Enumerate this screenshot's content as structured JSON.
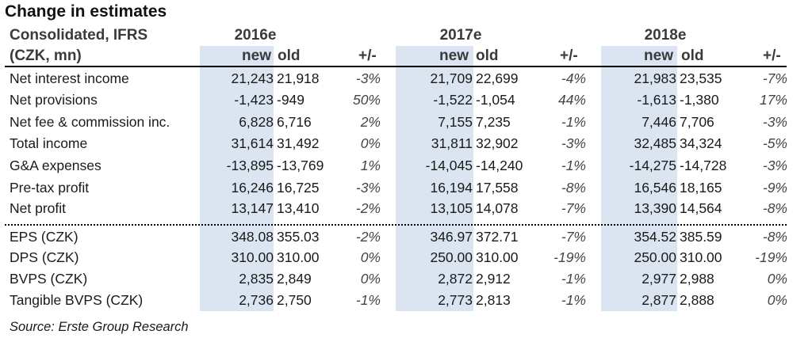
{
  "title": "Change in estimates",
  "header": {
    "line1": "Consolidated, IFRS",
    "line2": "(CZK, mn)",
    "years": [
      "2016e",
      "2017e",
      "2018e"
    ],
    "new_label": "new",
    "old_label": "old",
    "chg_label": "+/-"
  },
  "rows": [
    {
      "label": "Net interest income",
      "v": [
        [
          "21,243",
          "21,918",
          "-3%"
        ],
        [
          "21,709",
          "22,699",
          "-4%"
        ],
        [
          "21,983",
          "23,535",
          "-7%"
        ]
      ]
    },
    {
      "label": "Net provisions",
      "v": [
        [
          "-1,423",
          "-949",
          "50%"
        ],
        [
          "-1,522",
          "-1,054",
          "44%"
        ],
        [
          "-1,613",
          "-1,380",
          "17%"
        ]
      ]
    },
    {
      "label": "Net fee & commission inc.",
      "v": [
        [
          "6,828",
          "6,716",
          "2%"
        ],
        [
          "7,155",
          "7,235",
          "-1%"
        ],
        [
          "7,446",
          "7,706",
          "-3%"
        ]
      ]
    },
    {
      "label": "Total income",
      "v": [
        [
          "31,614",
          "31,492",
          "0%"
        ],
        [
          "31,811",
          "32,902",
          "-3%"
        ],
        [
          "32,485",
          "34,324",
          "-5%"
        ]
      ]
    },
    {
      "label": "G&A expenses",
      "v": [
        [
          "-13,895",
          "-13,769",
          "1%"
        ],
        [
          "-14,045",
          "-14,240",
          "-1%"
        ],
        [
          "-14,275",
          "-14,728",
          "-3%"
        ]
      ]
    },
    {
      "label": "Pre-tax profit",
      "v": [
        [
          "16,246",
          "16,725",
          "-3%"
        ],
        [
          "16,194",
          "17,558",
          "-8%"
        ],
        [
          "16,546",
          "18,165",
          "-9%"
        ]
      ]
    },
    {
      "label": "Net profit",
      "v": [
        [
          "13,147",
          "13,410",
          "-2%"
        ],
        [
          "13,105",
          "14,078",
          "-7%"
        ],
        [
          "13,390",
          "14,564",
          "-8%"
        ]
      ]
    },
    {
      "label": "EPS (CZK)",
      "v": [
        [
          "348.08",
          "355.03",
          "-2%"
        ],
        [
          "346.97",
          "372.71",
          "-7%"
        ],
        [
          "354.52",
          "385.59",
          "-8%"
        ]
      ]
    },
    {
      "label": "DPS (CZK)",
      "v": [
        [
          "310.00",
          "310.00",
          "0%"
        ],
        [
          "250.00",
          "310.00",
          "-19%"
        ],
        [
          "250.00",
          "310.00",
          "-19%"
        ]
      ]
    },
    {
      "label": "BVPS (CZK)",
      "v": [
        [
          "2,835",
          "2,849",
          "0%"
        ],
        [
          "2,872",
          "2,912",
          "-1%"
        ],
        [
          "2,977",
          "2,988",
          "0%"
        ]
      ]
    },
    {
      "label": "Tangible BVPS (CZK)",
      "v": [
        [
          "2,736",
          "2,750",
          "-1%"
        ],
        [
          "2,773",
          "2,813",
          "-1%"
        ],
        [
          "2,877",
          "2,888",
          "0%"
        ]
      ]
    }
  ],
  "source": "Source: Erste Group Research"
}
